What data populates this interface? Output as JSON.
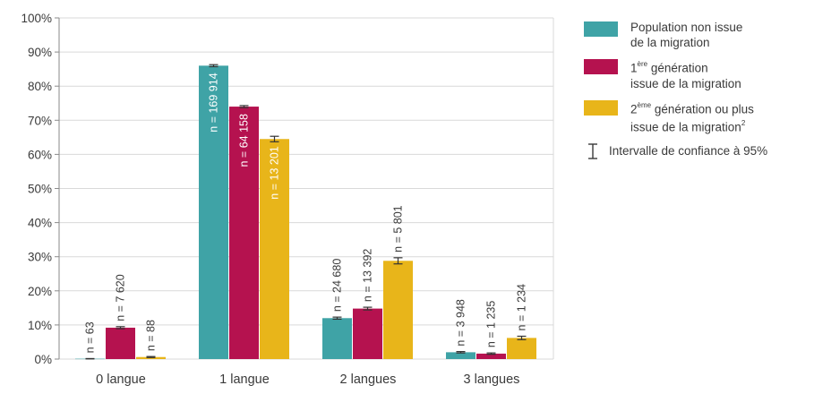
{
  "chart_data": {
    "type": "bar",
    "categories": [
      "0 langue",
      "1 langue",
      "2 langues",
      "3 langues"
    ],
    "ylim": [
      0,
      100
    ],
    "y_ticks": [
      "0%",
      "10%",
      "20%",
      "30%",
      "40%",
      "50%",
      "60%",
      "70%",
      "80%",
      "90%",
      "100%"
    ],
    "grid": true,
    "legend_position": "right",
    "series": [
      {
        "name": "Population non issue de la migration",
        "color": "#3fa3a6",
        "values": [
          0.1,
          86.0,
          12.0,
          2.0
        ],
        "ci": [
          0.05,
          0.3,
          0.3,
          0.2
        ],
        "labels": [
          "n = 63",
          "n = 169 914",
          "n = 24 680",
          "n = 3 948"
        ]
      },
      {
        "name": "1ème génération issue de la migration",
        "color": "#b5124f",
        "values": [
          9.2,
          74.0,
          14.8,
          1.6
        ],
        "ci": [
          0.3,
          0.3,
          0.4,
          0.2
        ],
        "labels": [
          "n = 7 620",
          "n = 64 158",
          "n = 13 392",
          "n = 1 235"
        ]
      },
      {
        "name": "2ème génération ou plus issue de la migration2",
        "color": "#e8b51a",
        "values": [
          0.6,
          64.5,
          28.8,
          6.2
        ],
        "ci": [
          0.15,
          0.8,
          0.9,
          0.5
        ],
        "labels": [
          "n = 88",
          "n = 13 201",
          "n = 5 801",
          "n = 1 234"
        ]
      }
    ]
  },
  "legend": {
    "item1": {
      "line1": "Population non issue",
      "line2": "de la migration",
      "color": "#3fa3a6"
    },
    "item2": {
      "sup": "ère",
      "line1_rest": " génération",
      "line2": "issue de la migration",
      "color": "#b5124f"
    },
    "item3": {
      "sup": "ème",
      "line1_rest": " génération ou plus",
      "line2": "issue de la migration",
      "note": "2",
      "color": "#e8b51a"
    },
    "ci_label": "Intervalle de confiance à 95%",
    "prefix1": "1",
    "prefix2": "2"
  }
}
